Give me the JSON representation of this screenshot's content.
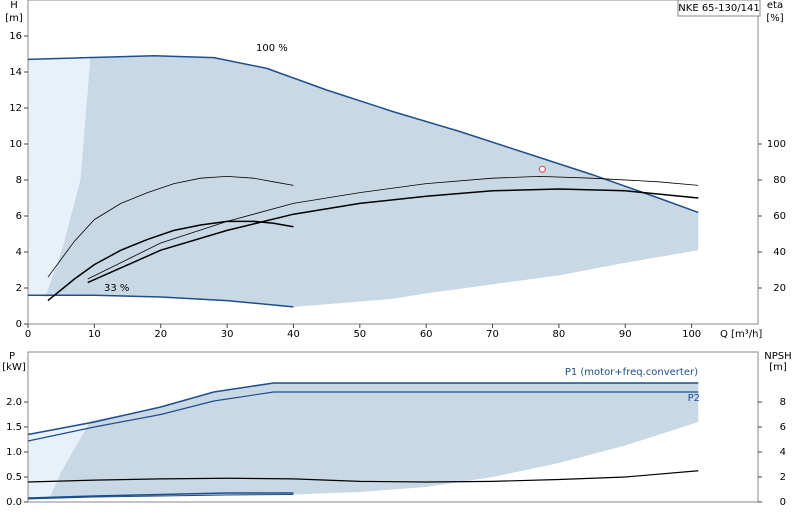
{
  "chart_data": [
    {
      "type": "line",
      "title": "NKE 65-130/141",
      "xlabel": "Q [m³/h]",
      "ylabel": "H",
      "yunit": "[m]",
      "y2label": "eta",
      "y2unit": "[%]",
      "annotations": [
        "100 %",
        "33 %"
      ],
      "xlim": [
        0,
        110
      ],
      "xticks": [
        0,
        10,
        20,
        30,
        40,
        50,
        60,
        70,
        80,
        90,
        100
      ],
      "ylim": [
        0,
        18
      ],
      "yticks": [
        0,
        2,
        4,
        6,
        8,
        10,
        12,
        14,
        16
      ],
      "y2lim": [
        0,
        180
      ],
      "y2ticks": [
        20,
        40,
        60,
        80,
        100
      ],
      "areas": [
        {
          "color": "#e8f1fa",
          "x": [
            0,
            9.4,
            7.9,
            5.1,
            2.6,
            0
          ],
          "values": [
            14.7,
            14.8,
            8,
            4.1,
            1.5,
            1.6
          ]
        },
        {
          "color": "#c9d8e5",
          "x": [
            9.4,
            19,
            28,
            36,
            45,
            55,
            65,
            75,
            85,
            95,
            101,
            101,
            90,
            80,
            70,
            60,
            55,
            45,
            40,
            30,
            20,
            10,
            4,
            2.6,
            5.1,
            7.9
          ],
          "values": [
            14.8,
            14.9,
            14.8,
            14.2,
            13,
            11.8,
            10.7,
            9.5,
            8.3,
            7,
            6.2,
            4.1,
            3.4,
            2.7,
            2.2,
            1.7,
            1.4,
            1.1,
            0.95,
            1.3,
            1.5,
            1.6,
            1.6,
            1.5,
            4.1,
            8
          ]
        }
      ],
      "series": [
        {
          "color": "#1f4e8c",
          "width": 1.5,
          "x": [
            0,
            9,
            19,
            28,
            36,
            45,
            55,
            65,
            75,
            85,
            95,
            101
          ],
          "values": [
            14.7,
            14.8,
            14.9,
            14.8,
            14.2,
            13,
            11.8,
            10.7,
            9.5,
            8.3,
            7,
            6.2
          ]
        },
        {
          "color": "#1f4e8c",
          "width": 1.5,
          "x": [
            0,
            10,
            20,
            30,
            40
          ],
          "values": [
            1.6,
            1.6,
            1.5,
            1.3,
            0.95
          ]
        },
        {
          "color": "#000",
          "width": 0.8,
          "axis": "y2",
          "x": [
            3,
            7,
            10,
            14,
            18,
            22,
            26,
            30,
            34,
            37,
            40
          ],
          "values": [
            26,
            46,
            58,
            67,
            73,
            78,
            81,
            82,
            81,
            79,
            77
          ]
        },
        {
          "color": "#000",
          "width": 1.5,
          "axis": "y2",
          "x": [
            3,
            7,
            10,
            14,
            18,
            22,
            26,
            30,
            34,
            37,
            40
          ],
          "values": [
            13,
            25,
            33,
            41,
            47,
            52,
            55,
            57,
            57,
            56,
            54
          ]
        },
        {
          "color": "#000",
          "width": 0.8,
          "axis": "y2",
          "x": [
            9,
            20,
            30,
            40,
            50,
            60,
            70,
            77,
            85,
            95,
            101
          ],
          "values": [
            25,
            45,
            57,
            67,
            73,
            78,
            81,
            82,
            81,
            79,
            77
          ]
        },
        {
          "color": "#000",
          "width": 1.5,
          "axis": "y2",
          "x": [
            9,
            20,
            30,
            40,
            50,
            60,
            70,
            80,
            90,
            101
          ],
          "values": [
            23,
            41,
            52,
            61,
            67,
            71,
            74,
            75,
            74,
            70
          ]
        }
      ],
      "point": {
        "x": 77.5,
        "y": 8.6,
        "color": "#e04040"
      }
    },
    {
      "type": "line",
      "ylabel": "P",
      "yunit": "[kW]",
      "y2label": "NPSH",
      "y2unit": "[m]",
      "xlim": [
        0,
        110
      ],
      "ylim": [
        0,
        3
      ],
      "yticks": [
        {
          "value": 0,
          "label": "0.0"
        },
        0.5,
        {
          "value": 1,
          "label": "1.0"
        },
        1.5,
        {
          "value": 2,
          "label": "2.0"
        }
      ],
      "y2lim": [
        0,
        12
      ],
      "y2ticks": [
        0,
        2,
        4,
        6,
        8
      ],
      "areas": [
        {
          "color": "#e8f1fa",
          "x": [
            0,
            9.4,
            5,
            3.3,
            0
          ],
          "values": [
            1.35,
            1.62,
            0.6,
            0.1,
            0.1
          ]
        },
        {
          "color": "#c9d8e5",
          "x": [
            9.4,
            20,
            28,
            37,
            101,
            101,
            90,
            80,
            70,
            60,
            50,
            40,
            30,
            20,
            10,
            3.3,
            5
          ],
          "values": [
            1.62,
            1.9,
            2.2,
            2.38,
            2.38,
            1.6,
            1.13,
            0.78,
            0.5,
            0.3,
            0.2,
            0.15,
            0.13,
            0.12,
            0.11,
            0.1,
            0.6
          ]
        }
      ],
      "series": [
        {
          "name": "P1 (motor+freq.converter)",
          "color": "#1f4e8c",
          "width": 1.5,
          "x": [
            0,
            10,
            20,
            28,
            37,
            101
          ],
          "values": [
            1.35,
            1.6,
            1.9,
            2.2,
            2.38,
            2.38
          ]
        },
        {
          "name": "P2",
          "color": "#1f4e8c",
          "width": 1.2,
          "x": [
            0,
            10,
            20,
            28,
            37,
            101
          ],
          "values": [
            1.22,
            1.5,
            1.75,
            2.02,
            2.2,
            2.2
          ]
        },
        {
          "color": "#000",
          "width": 1.2,
          "axis": "y2",
          "x": [
            0,
            10,
            20,
            30,
            40,
            50,
            60,
            70,
            80,
            90,
            101
          ],
          "values": [
            1.6,
            1.75,
            1.85,
            1.9,
            1.85,
            1.65,
            1.6,
            1.65,
            1.8,
            2.0,
            2.5
          ]
        },
        {
          "color": "#1f4e8c",
          "width": 1.5,
          "x": [
            0,
            10,
            20,
            30,
            40
          ],
          "values": [
            0.08,
            0.12,
            0.15,
            0.18,
            0.18
          ]
        },
        {
          "color": "#1f4e8c",
          "width": 1,
          "x": [
            0,
            10,
            20,
            30,
            40
          ],
          "values": [
            0.06,
            0.1,
            0.12,
            0.14,
            0.15
          ]
        }
      ]
    }
  ]
}
